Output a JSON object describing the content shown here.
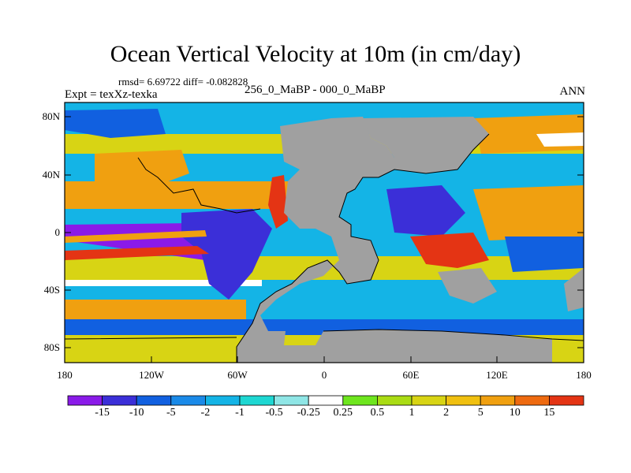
{
  "title": "Ocean Vertical Velocity at 10m (in cm/day)",
  "stats": "rmsd= 6.69722  diff= -0.082828",
  "expt": "Expt = texXz-texka",
  "subtitle": "256_0_MaBP - 000_0_MaBP",
  "season": "ANN",
  "y_ticks": [
    "80N",
    "40N",
    "0",
    "40S",
    "80S"
  ],
  "x_ticks": [
    "180",
    "120W",
    "60W",
    "0",
    "60E",
    "120E",
    "180"
  ],
  "colorbar": {
    "labels": [
      "-15",
      "-10",
      "-5",
      "-2",
      "-1",
      "-0.5",
      "-0.25",
      "0.25",
      "0.5",
      "1",
      "2",
      "5",
      "10",
      "15"
    ],
    "colors": [
      "#8a1ae8",
      "#3b2fd8",
      "#1160e0",
      "#1a8ae8",
      "#14b4e6",
      "#1ed7d2",
      "#8fe6e6",
      "#ffffff",
      "#6ee61e",
      "#aadc14",
      "#d8d414",
      "#f0c010",
      "#f0a010",
      "#ee6a10",
      "#e43414"
    ]
  },
  "map_colors": {
    "land": "#a0a0a0",
    "neg_strong": "#3b2fd8",
    "neg_mid": "#1160e0",
    "neg_light": "#14b4e6",
    "neutral": "#ffffff",
    "pos_light": "#d8d414",
    "pos_mid": "#f0a010",
    "pos_strong": "#e43414",
    "purple": "#8a1ae8"
  }
}
